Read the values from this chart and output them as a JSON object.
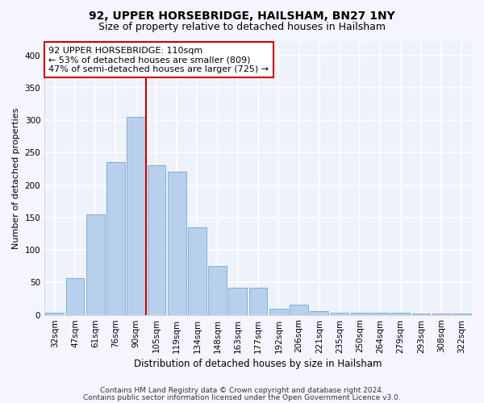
{
  "title1": "92, UPPER HORSEBRIDGE, HAILSHAM, BN27 1NY",
  "title2": "Size of property relative to detached houses in Hailsham",
  "xlabel": "Distribution of detached houses by size in Hailsham",
  "ylabel": "Number of detached properties",
  "categories": [
    "32sqm",
    "47sqm",
    "61sqm",
    "76sqm",
    "90sqm",
    "105sqm",
    "119sqm",
    "134sqm",
    "148sqm",
    "163sqm",
    "177sqm",
    "192sqm",
    "206sqm",
    "221sqm",
    "235sqm",
    "250sqm",
    "264sqm",
    "279sqm",
    "293sqm",
    "308sqm",
    "322sqm"
  ],
  "values": [
    3,
    57,
    155,
    236,
    305,
    230,
    220,
    135,
    75,
    42,
    42,
    10,
    15,
    6,
    3,
    3,
    3,
    3,
    2,
    2,
    2
  ],
  "bar_color": "#b8d0eb",
  "bar_edge_color": "#6699cc",
  "vline_color": "#cc0000",
  "annotation_text": "92 UPPER HORSEBRIDGE: 110sqm\n← 53% of detached houses are smaller (809)\n47% of semi-detached houses are larger (725) →",
  "annotation_box_color": "#ffffff",
  "annotation_box_edge": "#cc0000",
  "footer1": "Contains HM Land Registry data © Crown copyright and database right 2024.",
  "footer2": "Contains public sector information licensed under the Open Government Licence v3.0.",
  "ylim": [
    0,
    420
  ],
  "yticks": [
    0,
    50,
    100,
    150,
    200,
    250,
    300,
    350,
    400
  ],
  "bg_color": "#eef2fb",
  "grid_color": "#ffffff",
  "fig_bg_color": "#f5f5ff",
  "title1_fontsize": 10,
  "title2_fontsize": 9,
  "xlabel_fontsize": 8.5,
  "ylabel_fontsize": 8,
  "tick_fontsize": 7.5,
  "footer_fontsize": 6.5,
  "ann_fontsize": 8
}
